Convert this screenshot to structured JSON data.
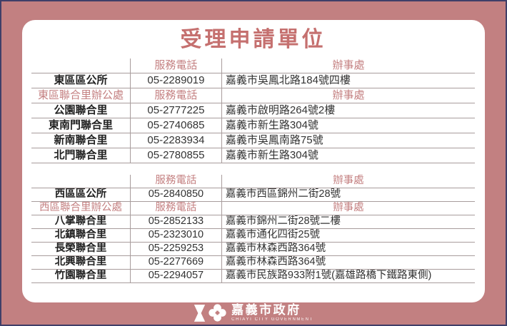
{
  "page": {
    "title": "受理申請單位"
  },
  "colors": {
    "frame_mauve": "#c28081",
    "outer_border_navy": "#3f3f68",
    "card_white": "#ffffff",
    "title_rose": "#c5706f",
    "header_text_rose": "#c48081",
    "body_text": "#333333",
    "table_line": "#a89c9c"
  },
  "tables": [
    {
      "rows": [
        {
          "type": "header",
          "name": "",
          "phone": "服務電話",
          "office": "辦事處"
        },
        {
          "type": "data",
          "name": "東區區公所",
          "phone": "05-2289019",
          "office": "嘉義市吳鳳北路184號四樓"
        },
        {
          "type": "section",
          "name": "東區聯合里辦公處",
          "phone": "服務電話",
          "office": "辦事處"
        },
        {
          "type": "data",
          "name": "公園聯合里",
          "phone": "05-2777225",
          "office": "嘉義市啟明路264號2樓"
        },
        {
          "type": "data",
          "name": "東南門聯合里",
          "phone": "05-2740685",
          "office": "嘉義市新生路304號"
        },
        {
          "type": "data",
          "name": "新南聯合里",
          "phone": "05-2283934",
          "office": "嘉義市吳鳳南路75號"
        },
        {
          "type": "data",
          "name": "北門聯合里",
          "phone": "05-2780855",
          "office": "嘉義市新生路304號"
        }
      ]
    },
    {
      "rows": [
        {
          "type": "header",
          "name": "",
          "phone": "服務電話",
          "office": "辦事處"
        },
        {
          "type": "data",
          "name": "西區區公所",
          "phone": "05-2840850",
          "office": "嘉義市西區錦州二街28號"
        },
        {
          "type": "section",
          "name": "西區聯合里辦公處",
          "phone": "服務電話",
          "office": "辦事處"
        },
        {
          "type": "data",
          "name": "八掌聯合里",
          "phone": "05-2852133",
          "office": "嘉義市錦州二街28號二樓"
        },
        {
          "type": "data",
          "name": "北鎮聯合里",
          "phone": "05-2323010",
          "office": "嘉義市通化四街25號"
        },
        {
          "type": "data",
          "name": "長榮聯合里",
          "phone": "05-2259253",
          "office": "嘉義市林森西路364號"
        },
        {
          "type": "data",
          "name": "北興聯合里",
          "phone": "05-2277669",
          "office": "嘉義市林森西路364號"
        },
        {
          "type": "data",
          "name": "竹園聯合里",
          "phone": "05-2294057",
          "office": "嘉義市民族路933附1號(嘉雄路橋下鐵路東側)"
        }
      ]
    }
  ],
  "footer": {
    "org_name": "嘉義市政府",
    "org_name_en": "CHIAYI CITY GOVERNMENT",
    "icons": [
      "hourglass-figure-icon",
      "clover-flower-icon"
    ]
  }
}
